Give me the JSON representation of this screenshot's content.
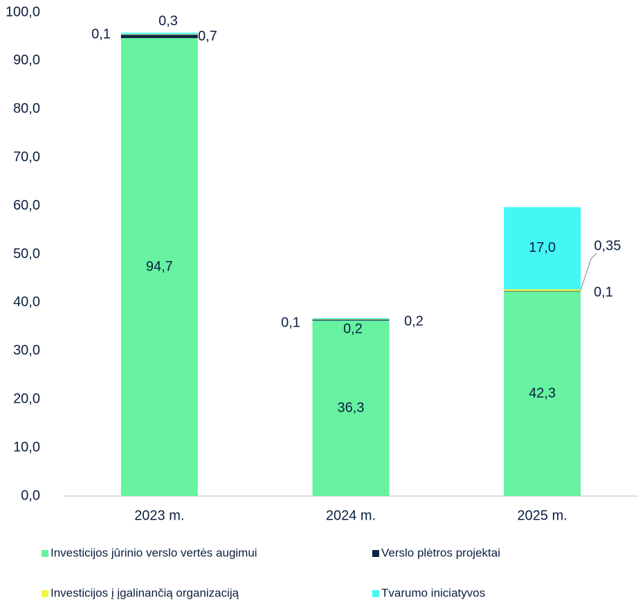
{
  "chart_data": {
    "type": "stacked_bar",
    "categories": [
      "2023 m.",
      "2024 m.",
      "2025 m."
    ],
    "series": [
      {
        "name": "Investicijos jūrinio verslo vertės augimui",
        "color": "#66f2a0",
        "values": [
          94.7,
          36.3,
          42.3
        ],
        "value_labels": [
          "94,7",
          "36,3",
          "42,3"
        ]
      },
      {
        "name": "Verslo plėtros projektai",
        "color": "#0b2545",
        "values": [
          0.7,
          0.2,
          0.1
        ],
        "value_labels": [
          "0,7",
          "0,2",
          "0,1"
        ]
      },
      {
        "name": "Investicijos į įgalinančią organizaciją",
        "color": "#f2f542",
        "values": [
          0.1,
          0.1,
          0.35
        ],
        "value_labels": [
          "0,1",
          "0,1",
          "0,35"
        ]
      },
      {
        "name": "Tvarumo iniciatyvos",
        "color": "#45f7f2",
        "values": [
          0.3,
          0.2,
          17.0
        ],
        "value_labels": [
          "0,3",
          "0,2",
          "17,0"
        ]
      }
    ],
    "ylim": [
      0,
      100
    ],
    "yticks": [
      {
        "value": 0,
        "label": "0,0"
      },
      {
        "value": 10,
        "label": "10,0"
      },
      {
        "value": 20,
        "label": "20,0"
      },
      {
        "value": 30,
        "label": "30,0"
      },
      {
        "value": 40,
        "label": "40,0"
      },
      {
        "value": 50,
        "label": "50,0"
      },
      {
        "value": 60,
        "label": "60,0"
      },
      {
        "value": 70,
        "label": "70,0"
      },
      {
        "value": 80,
        "label": "80,0"
      },
      {
        "value": 90,
        "label": "90,0"
      },
      {
        "value": 100,
        "label": "100,0"
      }
    ],
    "grid": false
  }
}
